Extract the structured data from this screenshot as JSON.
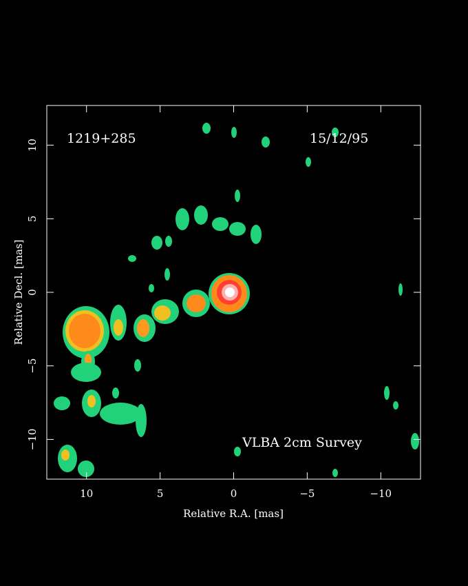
{
  "chart_data": {
    "type": "image",
    "source_label": "1219+285",
    "date_label": "15/12/95",
    "survey_label": "VLBA 2cm Survey",
    "x_label": "Relative R.A. [mas]",
    "y_label": "Relative Decl. [mas]",
    "xlim": [
      12.7,
      -12.7
    ],
    "ylim": [
      -12.7,
      12.7
    ],
    "xticks": [
      10,
      5,
      0,
      {
        "value": -5,
        "label": "−5"
      },
      {
        "value": -10,
        "label": "−10"
      }
    ],
    "yticks": [
      {
        "value": -10,
        "label": "−10"
      },
      {
        "value": -5,
        "label": "−5"
      },
      0,
      5,
      10
    ]
  }
}
